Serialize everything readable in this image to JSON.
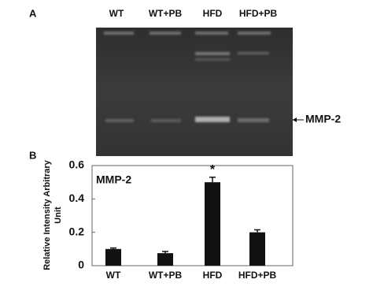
{
  "panel_a": {
    "label": "A",
    "lanes": [
      "WT",
      "WT+PB",
      "HFD",
      "HFD+PB"
    ],
    "band_label": "MMP-2"
  },
  "panel_b_label": "B",
  "chart_data": {
    "type": "bar",
    "title": "MMP-2",
    "ylabel": [
      "Relative Intensity Arbitrary",
      "Unit"
    ],
    "categories": [
      "WT",
      "WT+PB",
      "HFD",
      "HFD+PB"
    ],
    "values": [
      0.1,
      0.075,
      0.5,
      0.2
    ],
    "errors": [
      0.006,
      0.01,
      0.03,
      0.015
    ],
    "annotation": "*",
    "color": "#111111",
    "ylim": [
      0,
      0.6
    ],
    "yticks": [
      0,
      0.2,
      0.4,
      0.6
    ]
  }
}
